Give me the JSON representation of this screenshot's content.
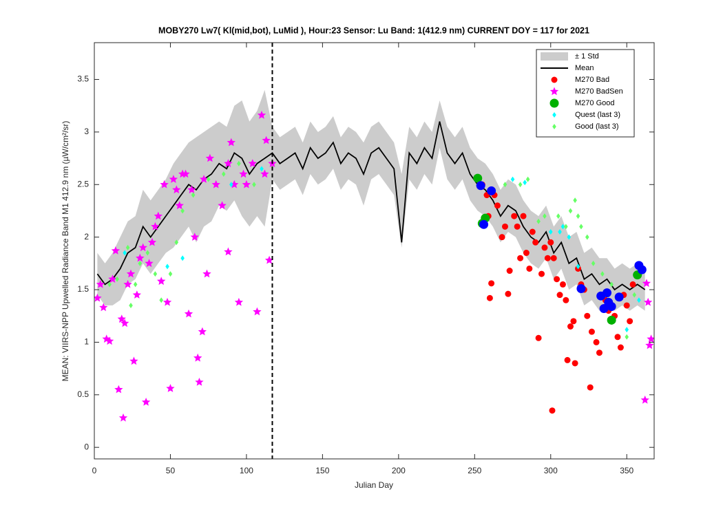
{
  "chart_data": {
    "type": "line",
    "title": "MOBY270   Lw7( Kl(mid,bot), LuMid ),   Hour:23 Sensor: Lu Band: 1(412.9 nm)   CURRENT DOY = 117 for 2021",
    "x_label": "Julian Day",
    "y_label": "MEAN: VIIRS-NPP Upwelled Radiance Band M1 412.9 nm (µW/cm²/sr)",
    "xlim": [
      0,
      368
    ],
    "ylim": [
      -0.11,
      3.85
    ],
    "xticks": [
      0,
      50,
      100,
      150,
      200,
      250,
      300,
      350
    ],
    "yticks": [
      0,
      0.5,
      1,
      1.5,
      2,
      2.5,
      3,
      3.5
    ],
    "legend": "upper right",
    "current_doy": 117,
    "x": [
      2,
      7,
      12,
      17,
      22,
      27,
      32,
      37,
      42,
      47,
      52,
      57,
      62,
      67,
      72,
      77,
      82,
      87,
      92,
      97,
      102,
      107,
      112,
      117,
      122,
      127,
      132,
      137,
      142,
      147,
      152,
      157,
      162,
      167,
      172,
      177,
      182,
      187,
      192,
      197,
      202,
      207,
      212,
      217,
      222,
      227,
      232,
      237,
      242,
      247,
      252,
      257,
      262,
      267,
      272,
      277,
      282,
      287,
      292,
      297,
      302,
      307,
      312,
      317,
      322,
      327,
      332,
      337,
      342,
      347,
      352,
      357,
      362
    ],
    "series": [
      {
        "name": "± 1 Std",
        "style": "band",
        "color": "#cccccc",
        "upper": [
          1.85,
          1.75,
          1.85,
          2.0,
          2.15,
          2.2,
          2.45,
          2.35,
          2.45,
          2.55,
          2.7,
          2.8,
          2.9,
          2.95,
          3.0,
          3.05,
          3.1,
          3.05,
          3.25,
          3.3,
          3.1,
          3.2,
          3.4,
          3.05,
          2.95,
          3.0,
          3.05,
          2.9,
          3.1,
          3.0,
          3.05,
          3.15,
          2.95,
          3.05,
          3.0,
          2.9,
          3.05,
          3.1,
          3.0,
          2.9,
          2.6,
          3.05,
          2.95,
          3.1,
          3.0,
          3.3,
          3.05,
          2.95,
          3.05,
          2.85,
          2.75,
          2.7,
          2.6,
          2.45,
          2.55,
          2.5,
          2.35,
          2.25,
          2.2,
          2.3,
          2.1,
          2.2,
          2.0,
          2.05,
          1.85,
          1.9,
          1.8,
          1.8,
          1.7,
          1.75,
          1.7,
          1.75,
          1.7
        ],
        "lower": [
          1.45,
          1.35,
          1.35,
          1.4,
          1.55,
          1.6,
          1.75,
          1.65,
          1.75,
          1.85,
          1.9,
          2.0,
          2.1,
          1.95,
          2.1,
          2.15,
          2.3,
          2.25,
          2.35,
          2.2,
          2.1,
          2.2,
          2.1,
          2.55,
          2.45,
          2.5,
          2.55,
          2.4,
          2.6,
          2.5,
          2.55,
          2.65,
          2.45,
          2.55,
          2.5,
          2.3,
          2.55,
          2.6,
          2.5,
          2.4,
          1.9,
          2.55,
          2.45,
          2.6,
          2.5,
          2.85,
          2.55,
          2.45,
          2.55,
          2.35,
          2.25,
          2.2,
          2.1,
          1.95,
          2.05,
          2.0,
          1.85,
          1.75,
          1.7,
          1.8,
          1.6,
          1.7,
          1.5,
          1.55,
          1.35,
          1.4,
          1.3,
          1.4,
          1.3,
          1.35,
          1.3,
          1.35,
          1.3
        ]
      },
      {
        "name": "Mean",
        "style": "line",
        "color": "#000000",
        "values": [
          1.65,
          1.55,
          1.6,
          1.7,
          1.85,
          1.9,
          2.1,
          2.0,
          2.1,
          2.2,
          2.3,
          2.4,
          2.5,
          2.45,
          2.55,
          2.6,
          2.7,
          2.65,
          2.8,
          2.75,
          2.6,
          2.7,
          2.75,
          2.8,
          2.7,
          2.75,
          2.8,
          2.65,
          2.85,
          2.75,
          2.8,
          2.9,
          2.7,
          2.8,
          2.75,
          2.6,
          2.8,
          2.85,
          2.75,
          2.65,
          1.95,
          2.8,
          2.7,
          2.85,
          2.75,
          3.1,
          2.8,
          2.7,
          2.8,
          2.6,
          2.5,
          2.45,
          2.35,
          2.2,
          2.3,
          2.25,
          2.1,
          2.0,
          1.95,
          2.05,
          1.85,
          1.95,
          1.75,
          1.8,
          1.6,
          1.65,
          1.55,
          1.6,
          1.5,
          1.55,
          1.5,
          1.55,
          1.5
        ]
      },
      {
        "name": "M270 Bad",
        "style": "marker",
        "marker": "circle",
        "color": "#ff0000",
        "x": [
          255,
          258,
          259,
          260,
          261,
          263,
          265,
          268,
          270,
          272,
          273,
          276,
          278,
          280,
          282,
          284,
          286,
          288,
          290,
          292,
          294,
          296,
          298,
          300,
          301,
          302,
          304,
          306,
          308,
          310,
          311,
          313,
          315,
          316,
          318,
          320,
          322,
          324,
          326,
          327,
          330,
          332,
          336,
          338,
          342,
          344,
          346,
          348,
          350,
          352,
          354
        ],
        "values": [
          2.5,
          2.4,
          2.2,
          1.42,
          1.56,
          2.4,
          2.3,
          2.0,
          2.1,
          1.46,
          1.68,
          2.2,
          2.1,
          1.8,
          2.2,
          1.85,
          1.7,
          2.05,
          1.95,
          1.04,
          1.65,
          1.9,
          1.8,
          1.95,
          0.35,
          1.8,
          1.6,
          1.45,
          1.55,
          1.4,
          0.83,
          1.15,
          1.2,
          0.8,
          1.7,
          1.55,
          1.5,
          1.25,
          0.57,
          1.1,
          1.0,
          0.9,
          1.4,
          1.3,
          1.25,
          1.05,
          0.95,
          1.45,
          1.35,
          1.2,
          1.55
        ]
      },
      {
        "name": "M270 BadSen",
        "style": "marker",
        "marker": "star",
        "color": "#ff00ff",
        "x": [
          2,
          4,
          6,
          8,
          10,
          12,
          14,
          16,
          18,
          19,
          20,
          22,
          24,
          26,
          28,
          30,
          32,
          34,
          36,
          38,
          40,
          42,
          44,
          46,
          48,
          50,
          52,
          54,
          56,
          58,
          60,
          62,
          64,
          66,
          68,
          69,
          71,
          72,
          74,
          76,
          80,
          84,
          88,
          88,
          90,
          92,
          95,
          98,
          100,
          104,
          107,
          110,
          112,
          113,
          115,
          117,
          362,
          363,
          364,
          365,
          366
        ],
        "values": [
          1.42,
          1.55,
          1.33,
          1.03,
          1.01,
          1.6,
          1.87,
          0.55,
          1.22,
          0.28,
          1.18,
          1.55,
          1.65,
          0.82,
          1.45,
          1.8,
          1.9,
          0.43,
          1.75,
          1.95,
          2.1,
          2.2,
          1.58,
          2.5,
          1.38,
          0.56,
          2.55,
          2.45,
          2.3,
          2.6,
          2.6,
          1.27,
          2.45,
          2.0,
          0.85,
          0.62,
          1.1,
          2.55,
          1.65,
          2.75,
          2.5,
          2.3,
          2.7,
          1.86,
          2.9,
          2.5,
          1.38,
          2.6,
          2.5,
          2.7,
          1.29,
          3.16,
          2.6,
          2.92,
          1.78,
          2.7,
          0.45,
          1.56,
          1.38,
          0.97,
          1.03
        ]
      },
      {
        "name": "M270 Good",
        "style": "marker",
        "marker": "big-circle",
        "color": "#00b000",
        "x": [
          252,
          255,
          257,
          340,
          357
        ],
        "values": [
          2.56,
          2.13,
          2.18,
          1.21,
          1.64
        ]
      },
      {
        "name": "Quest (last 3)",
        "style": "marker",
        "marker": "diamond",
        "color": "#00ffff",
        "x": [
          20,
          48,
          58,
          90,
          110,
          275,
          283,
          300,
          306,
          308,
          312,
          318,
          338,
          350,
          358
        ],
        "values": [
          1.85,
          1.72,
          1.8,
          2.5,
          2.65,
          2.55,
          2.52,
          2.05,
          2.05,
          2.1,
          2.0,
          1.72,
          1.45,
          1.12,
          1.4
        ]
      },
      {
        "name": "Good (last 3)",
        "style": "marker",
        "marker": "diamond",
        "color": "#66ff66",
        "x": [
          10,
          15,
          22,
          24,
          27,
          30,
          35,
          40,
          44,
          50,
          54,
          58,
          65,
          75,
          85,
          95,
          105,
          270,
          280,
          285,
          292,
          296,
          305,
          310,
          313,
          316,
          318,
          320,
          324,
          328,
          334,
          340,
          350,
          355
        ],
        "values": [
          1.55,
          1.6,
          1.9,
          1.35,
          1.55,
          1.75,
          1.85,
          1.65,
          1.4,
          1.65,
          1.95,
          2.25,
          2.4,
          2.55,
          2.6,
          2.7,
          2.5,
          2.5,
          2.5,
          2.55,
          2.15,
          2.2,
          2.2,
          2.1,
          2.25,
          2.35,
          2.2,
          2.1,
          2.0,
          1.75,
          1.65,
          1.55,
          1.05,
          1.45
        ]
      },
      {
        "style": "marker",
        "marker": "big-circle",
        "color": "#0000ff",
        "x": [
          254,
          256,
          261,
          320,
          333,
          335,
          337,
          338,
          340,
          345,
          358,
          360
        ],
        "values": [
          2.49,
          2.12,
          2.44,
          1.51,
          1.44,
          1.32,
          1.47,
          1.38,
          1.34,
          1.43,
          1.73,
          1.69
        ]
      }
    ]
  }
}
